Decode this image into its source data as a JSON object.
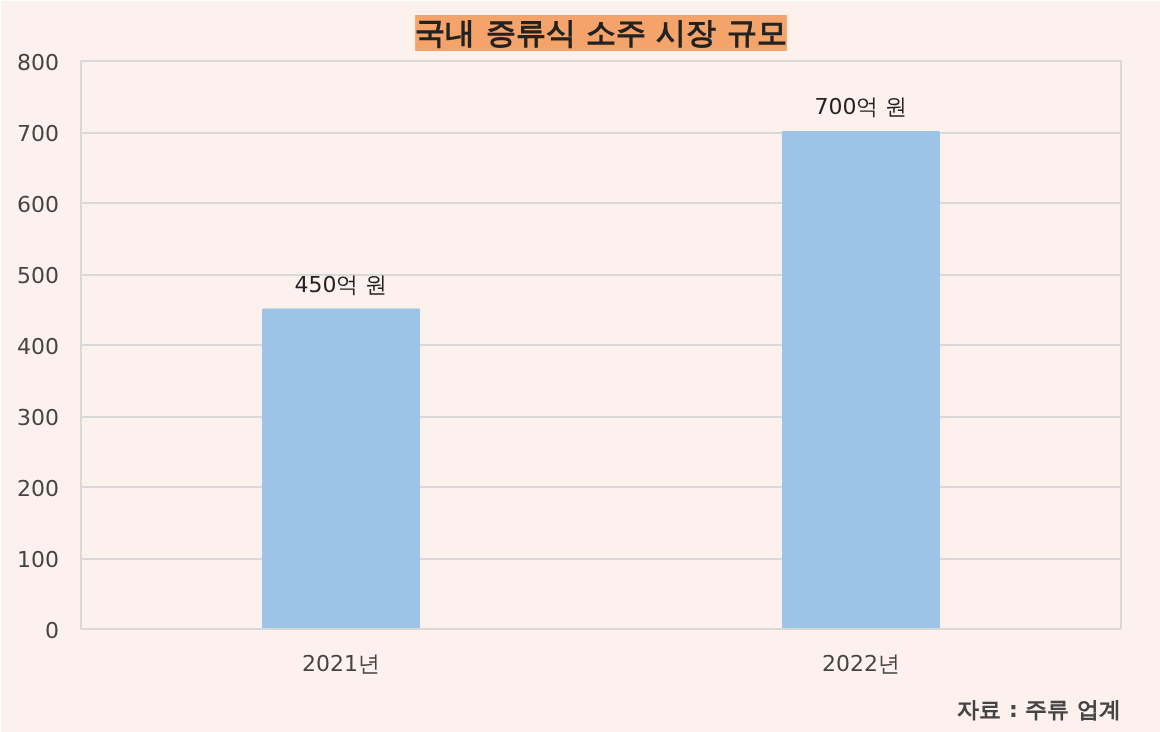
{
  "chart_data": {
    "type": "bar",
    "title": "국내 증류식 소주 시장 규모",
    "categories": [
      "2021년",
      "2022년"
    ],
    "values": [
      450,
      700
    ],
    "value_labels": [
      "450억 원",
      "700억 원"
    ],
    "color": "#9dc3e6",
    "ylim": [
      0,
      800
    ],
    "yticks": [
      0,
      100,
      200,
      300,
      400,
      500,
      600,
      700,
      800
    ],
    "grid": "y",
    "annotations": [
      "자료 : 주류 업계"
    ]
  }
}
